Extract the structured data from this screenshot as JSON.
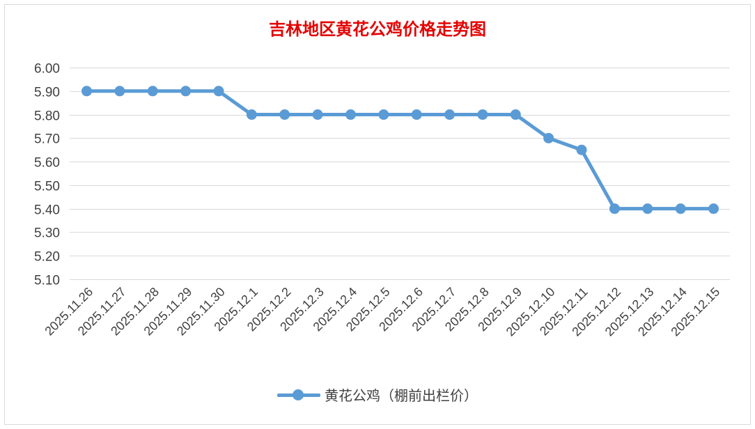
{
  "chart_data": {
    "type": "line",
    "title": "吉林地区黄花公鸡价格走势图",
    "categories": [
      "2025.11.26",
      "2025.11.27",
      "2025.11.28",
      "2025.11.29",
      "2025.11.30",
      "2025.12.1",
      "2025.12.2",
      "2025.12.3",
      "2025.12.4",
      "2025.12.5",
      "2025.12.6",
      "2025.12.7",
      "2025.12.8",
      "2025.12.9",
      "2025.12.10",
      "2025.12.11",
      "2025.12.12",
      "2025.12.13",
      "2025.12.14",
      "2025.12.15"
    ],
    "series": [
      {
        "name": "黄花公鸡（棚前出栏价）",
        "values": [
          5.9,
          5.9,
          5.9,
          5.9,
          5.9,
          5.8,
          5.8,
          5.8,
          5.8,
          5.8,
          5.8,
          5.8,
          5.8,
          5.8,
          5.7,
          5.65,
          5.4,
          5.4,
          5.4,
          5.4
        ]
      }
    ],
    "yticks": [
      "6.00",
      "5.90",
      "5.80",
      "5.70",
      "5.60",
      "5.50",
      "5.40",
      "5.30",
      "5.20",
      "5.10"
    ],
    "ylim": [
      5.1,
      6.0
    ],
    "grid": true,
    "legend_position": "bottom",
    "colors": {
      "title": "#e30000",
      "series": "#5b9bd5",
      "grid": "#d9d9d9",
      "text": "#404040"
    }
  }
}
